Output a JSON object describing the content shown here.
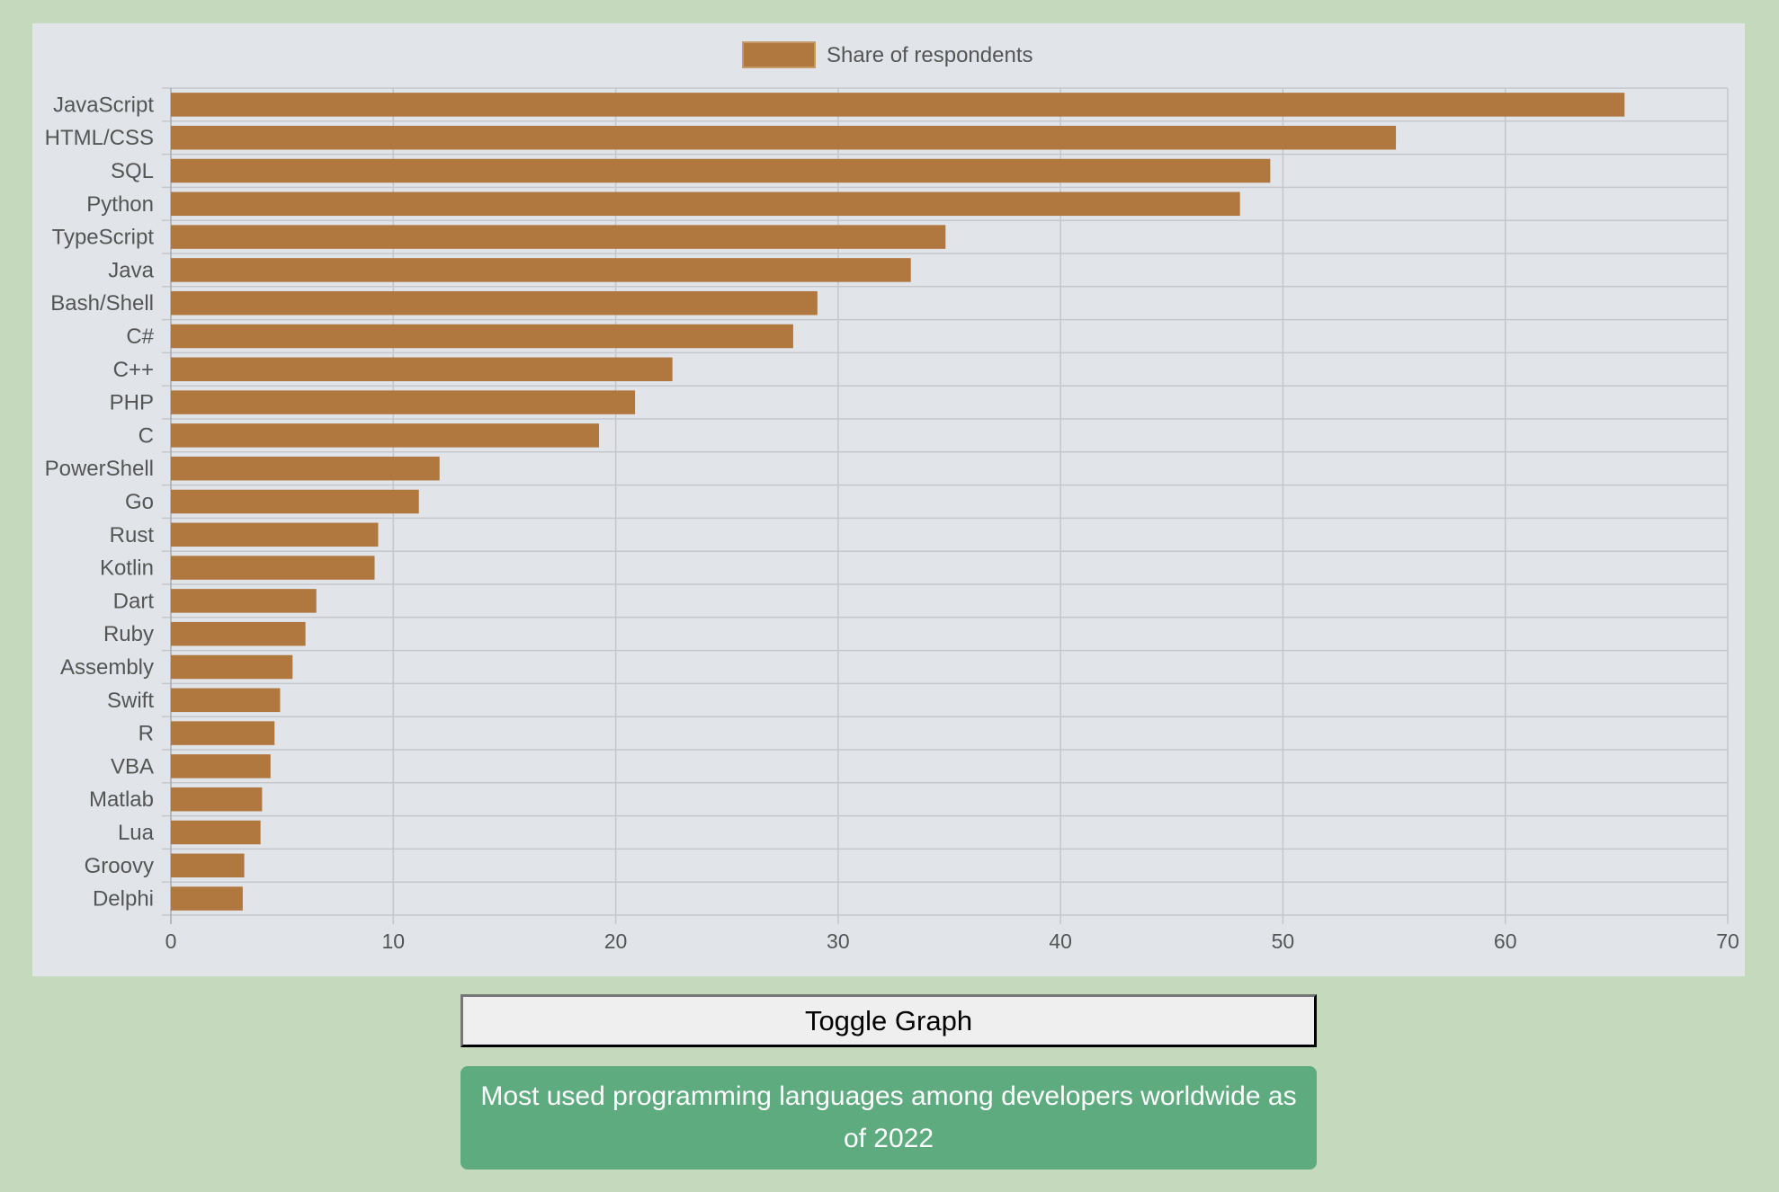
{
  "chart_data": {
    "type": "bar",
    "orientation": "horizontal",
    "categories": [
      "JavaScript",
      "HTML/CSS",
      "SQL",
      "Python",
      "TypeScript",
      "Java",
      "Bash/Shell",
      "C#",
      "C++",
      "PHP",
      "C",
      "PowerShell",
      "Go",
      "Rust",
      "Kotlin",
      "Dart",
      "Ruby",
      "Assembly",
      "Swift",
      "R",
      "VBA",
      "Matlab",
      "Lua",
      "Groovy",
      "Delphi"
    ],
    "series": [
      {
        "name": "Share of respondents",
        "color": "#b0773f",
        "values": [
          65.36,
          55.08,
          49.43,
          48.07,
          34.83,
          33.27,
          29.07,
          27.98,
          22.55,
          20.87,
          19.25,
          12.08,
          11.15,
          9.32,
          9.16,
          6.54,
          6.05,
          5.47,
          4.91,
          4.66,
          4.48,
          4.1,
          4.03,
          3.3,
          3.23
        ]
      }
    ],
    "xlim": [
      0,
      70
    ],
    "xticks": [
      0,
      10,
      20,
      30,
      40,
      50,
      60,
      70
    ],
    "grid": true,
    "legend": "top-center",
    "title": "",
    "xlabel": "",
    "ylabel": ""
  },
  "colors": {
    "page_background": "#c5dabc",
    "chart_background": "#e1e4e8",
    "bar": "#b0773f",
    "grid": "#c6c7cc",
    "caption_background": "#5fab80"
  },
  "toggle_button": {
    "label": "Toggle Graph"
  },
  "caption": {
    "text": "Most used programming languages among developers worldwide as of 2022"
  }
}
